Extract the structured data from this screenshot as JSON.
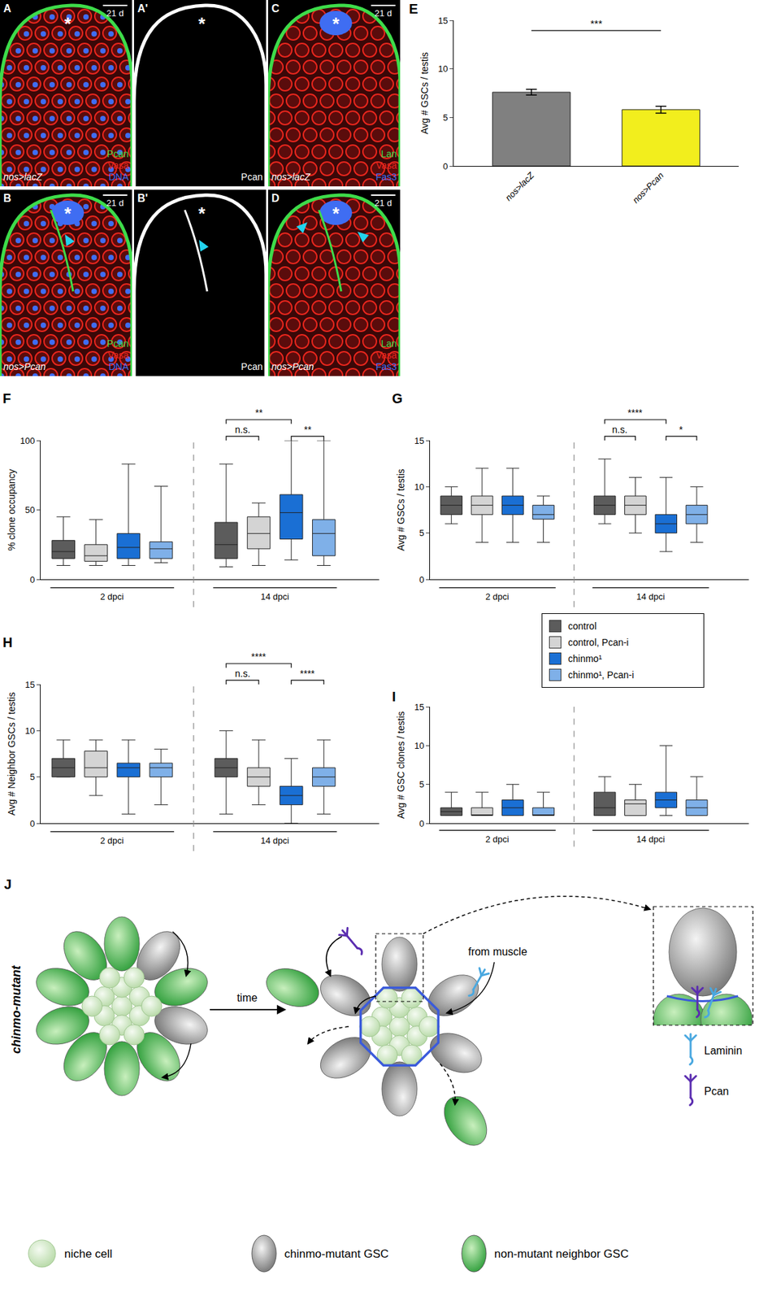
{
  "micrographs": [
    {
      "panel": "A",
      "genotype": "nos>lacZ",
      "scale_bar": "21 d",
      "asterisk": "*",
      "channels": [
        {
          "label": "Pcan",
          "color": "#3ddc4a"
        },
        {
          "label": "Vasa",
          "color": "#e8261d"
        },
        {
          "label": "DNA",
          "color": "#3f6df2"
        }
      ]
    },
    {
      "panel": "A'",
      "asterisk": "*",
      "channels": [
        {
          "label": "Pcan",
          "color": "#ffffff"
        }
      ]
    },
    {
      "panel": "C",
      "genotype": "nos>lacZ",
      "scale_bar": "21 d",
      "asterisk": "*",
      "channels": [
        {
          "label": "Lan",
          "color": "#3ddc4a"
        },
        {
          "label": "Vasa",
          "color": "#e8261d"
        },
        {
          "label": "Fas3",
          "color": "#3f6df2"
        }
      ]
    },
    {
      "panel": "B",
      "genotype": "nos>Pcan",
      "scale_bar": "21 d",
      "asterisk": "*",
      "channels": [
        {
          "label": "Pcan",
          "color": "#3ddc4a"
        },
        {
          "label": "Vasa",
          "color": "#e8261d"
        },
        {
          "label": "DNA",
          "color": "#3f6df2"
        }
      ]
    },
    {
      "panel": "B'",
      "asterisk": "*",
      "channels": [
        {
          "label": "Pcan",
          "color": "#ffffff"
        }
      ]
    },
    {
      "panel": "D",
      "genotype": "nos>Pcan",
      "scale_bar": "21 d",
      "asterisk": "*",
      "channels": [
        {
          "label": "Lan",
          "color": "#3ddc4a"
        },
        {
          "label": "Vasa",
          "color": "#e8261d"
        },
        {
          "label": "Fas3",
          "color": "#3f6df2"
        }
      ]
    }
  ],
  "chart_data": [
    {
      "type": "bar",
      "panel": "E",
      "ylabel": "Avg # GSCs / testis",
      "categories": [
        "nos>lacZ",
        "nos>Pcan"
      ],
      "values": [
        7.6,
        5.8
      ],
      "errors": [
        0.3,
        0.35
      ],
      "colors": [
        "#808080",
        "#f2ee1d"
      ],
      "ylim": [
        0,
        15
      ],
      "yticks": [
        0,
        5,
        10,
        15
      ],
      "significance": [
        {
          "between": [
            0,
            1
          ],
          "label": "***"
        }
      ]
    },
    {
      "type": "box",
      "panel": "F",
      "ylabel": "% clone occupancy",
      "groups": [
        "2 dpci",
        "14 dpci"
      ],
      "ylim": [
        0,
        100
      ],
      "yticks": [
        0,
        50,
        100
      ],
      "series": [
        {
          "values": [
            {
              "min": 10,
              "q1": 15,
              "median": 20,
              "q3": 28,
              "max": 45
            },
            {
              "min": 9,
              "q1": 15,
              "median": 25,
              "q3": 41,
              "max": 83
            }
          ]
        },
        {
          "values": [
            {
              "min": 10,
              "q1": 13,
              "median": 17,
              "q3": 25,
              "max": 43
            },
            {
              "min": 10,
              "q1": 22,
              "median": 33,
              "q3": 45,
              "max": 55
            }
          ]
        },
        {
          "values": [
            {
              "min": 10,
              "q1": 15,
              "median": 23,
              "q3": 33,
              "max": 83
            },
            {
              "min": 14,
              "q1": 29,
              "median": 48,
              "q3": 61,
              "max": 100
            }
          ]
        },
        {
          "values": [
            {
              "min": 12,
              "q1": 15,
              "median": 22,
              "q3": 27,
              "max": 67
            },
            {
              "min": 10,
              "q1": 17,
              "median": 33,
              "q3": 43,
              "max": 100
            }
          ]
        }
      ],
      "significance": [
        {
          "group": 1,
          "between": [
            0,
            1
          ],
          "label": "n.s."
        },
        {
          "group": 1,
          "between": [
            0,
            2
          ],
          "label": "**"
        },
        {
          "group": 1,
          "between": [
            2,
            3
          ],
          "label": "**"
        }
      ]
    },
    {
      "type": "box",
      "panel": "G",
      "ylabel": "Avg # GSCs / testis",
      "groups": [
        "2 dpci",
        "14 dpci"
      ],
      "ylim": [
        0,
        15
      ],
      "yticks": [
        0,
        5,
        10,
        15
      ],
      "series": [
        {
          "values": [
            {
              "min": 6,
              "q1": 7,
              "median": 8,
              "q3": 9,
              "max": 10
            },
            {
              "min": 6,
              "q1": 7,
              "median": 8,
              "q3": 9,
              "max": 13
            }
          ]
        },
        {
          "values": [
            {
              "min": 4,
              "q1": 7,
              "median": 8,
              "q3": 9,
              "max": 12
            },
            {
              "min": 5,
              "q1": 7,
              "median": 8,
              "q3": 9,
              "max": 11
            }
          ]
        },
        {
          "values": [
            {
              "min": 4,
              "q1": 7,
              "median": 8,
              "q3": 9,
              "max": 12
            },
            {
              "min": 3,
              "q1": 5,
              "median": 6,
              "q3": 7,
              "max": 11
            }
          ]
        },
        {
          "values": [
            {
              "min": 4,
              "q1": 6.5,
              "median": 7,
              "q3": 8,
              "max": 9
            },
            {
              "min": 4,
              "q1": 6,
              "median": 7,
              "q3": 8,
              "max": 10
            }
          ]
        }
      ],
      "significance": [
        {
          "group": 1,
          "between": [
            0,
            1
          ],
          "label": "n.s."
        },
        {
          "group": 1,
          "between": [
            0,
            2
          ],
          "label": "****"
        },
        {
          "group": 1,
          "between": [
            2,
            3
          ],
          "label": "*"
        }
      ]
    },
    {
      "type": "box",
      "panel": "H",
      "ylabel": "Avg # Neighbor GSCs / testis",
      "groups": [
        "2 dpci",
        "14 dpci"
      ],
      "ylim": [
        0,
        15
      ],
      "yticks": [
        0,
        5,
        10,
        15
      ],
      "series": [
        {
          "values": [
            {
              "min": 5,
              "q1": 5,
              "median": 6,
              "q3": 7,
              "max": 9
            },
            {
              "min": 1,
              "q1": 5,
              "median": 6,
              "q3": 7,
              "max": 10
            }
          ]
        },
        {
          "values": [
            {
              "min": 3,
              "q1": 5,
              "median": 6,
              "q3": 7.8,
              "max": 9
            },
            {
              "min": 2,
              "q1": 4,
              "median": 5,
              "q3": 6,
              "max": 9
            }
          ]
        },
        {
          "values": [
            {
              "min": 1,
              "q1": 5,
              "median": 6,
              "q3": 6.5,
              "max": 9
            },
            {
              "min": 0,
              "q1": 2,
              "median": 3,
              "q3": 4,
              "max": 7
            }
          ]
        },
        {
          "values": [
            {
              "min": 2,
              "q1": 5,
              "median": 6,
              "q3": 6.5,
              "max": 8
            },
            {
              "min": 1,
              "q1": 4,
              "median": 5,
              "q3": 6,
              "max": 9
            }
          ]
        }
      ],
      "significance": [
        {
          "group": 1,
          "between": [
            0,
            1
          ],
          "label": "n.s."
        },
        {
          "group": 1,
          "between": [
            0,
            2
          ],
          "label": "****"
        },
        {
          "group": 1,
          "between": [
            2,
            3
          ],
          "label": "****"
        }
      ]
    },
    {
      "type": "box",
      "panel": "I",
      "ylabel": "Avg # GSC clones / testis",
      "groups": [
        "2 dpci",
        "14 dpci"
      ],
      "ylim": [
        0,
        15
      ],
      "yticks": [
        0,
        5,
        10,
        15
      ],
      "series": [
        {
          "values": [
            {
              "min": 1,
              "q1": 1,
              "median": 1.5,
              "q3": 2,
              "max": 4
            },
            {
              "min": 1,
              "q1": 1,
              "median": 2,
              "q3": 4,
              "max": 6
            }
          ]
        },
        {
          "values": [
            {
              "min": 1,
              "q1": 1,
              "median": 1,
              "q3": 2,
              "max": 4
            },
            {
              "min": 1,
              "q1": 1,
              "median": 2.5,
              "q3": 3,
              "max": 5
            }
          ]
        },
        {
          "values": [
            {
              "min": 1,
              "q1": 1,
              "median": 2,
              "q3": 3,
              "max": 5
            },
            {
              "min": 1,
              "q1": 2,
              "median": 3,
              "q3": 4,
              "max": 10
            }
          ]
        },
        {
          "values": [
            {
              "min": 1,
              "q1": 1,
              "median": 1,
              "q3": 2,
              "max": 4
            },
            {
              "min": 1,
              "q1": 1,
              "median": 2,
              "q3": 3,
              "max": 6
            }
          ]
        }
      ],
      "significance": []
    }
  ],
  "key": [
    {
      "name": "control",
      "color": "#5c5c5c"
    },
    {
      "name": "control, Pcan-i",
      "color": "#d4d4d4"
    },
    {
      "name": "chinmo¹",
      "color": "#1a6fd4"
    },
    {
      "name": "chinmo¹, Pcan-i",
      "color": "#7fb0e8"
    }
  ],
  "diagram": {
    "panel": "J",
    "side_label": "chinmo-mutant",
    "arrow_label": "time",
    "source_label": "from muscle",
    "molecules": [
      {
        "label": "Laminin",
        "color": "#4aa8e0"
      },
      {
        "label": "Pcan",
        "color": "#5b2db0"
      }
    ],
    "cell_key": [
      "niche cell",
      "chinmo-mutant GSC",
      "non-mutant neighbor GSC"
    ]
  }
}
